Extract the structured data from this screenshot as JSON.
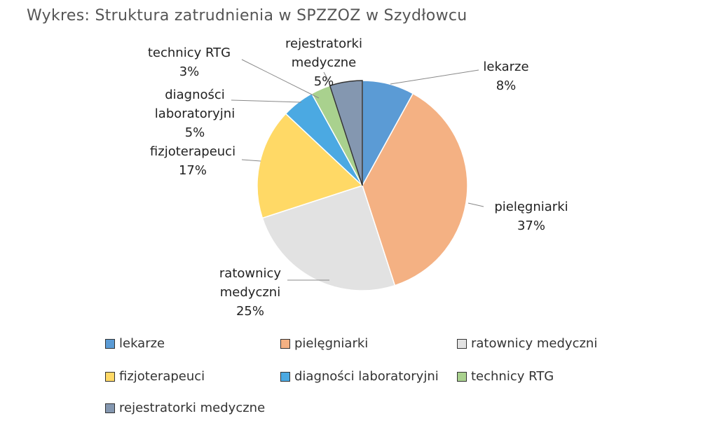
{
  "chart_data": {
    "type": "pie",
    "title": "Wykres: Struktura zatrudnienia w SPZZOZ w Szydłowcu",
    "categories": [
      "lekarze",
      "pielęgniarki",
      "ratownicy medyczni",
      "fizjoterapeuci",
      "diagności laboratoryjni",
      "technicy RTG",
      "rejestratorki medyczne"
    ],
    "values": [
      8,
      37,
      25,
      17,
      5,
      3,
      5
    ],
    "value_labels": [
      "8%",
      "37%",
      "25%",
      "17%",
      "5%",
      "3%",
      "5%"
    ],
    "colors": [
      "#5b9bd5",
      "#f4b183",
      "#e2e2e2",
      "#ffd966",
      "#4ba9e2",
      "#a9d18e",
      "#8497b0"
    ]
  }
}
